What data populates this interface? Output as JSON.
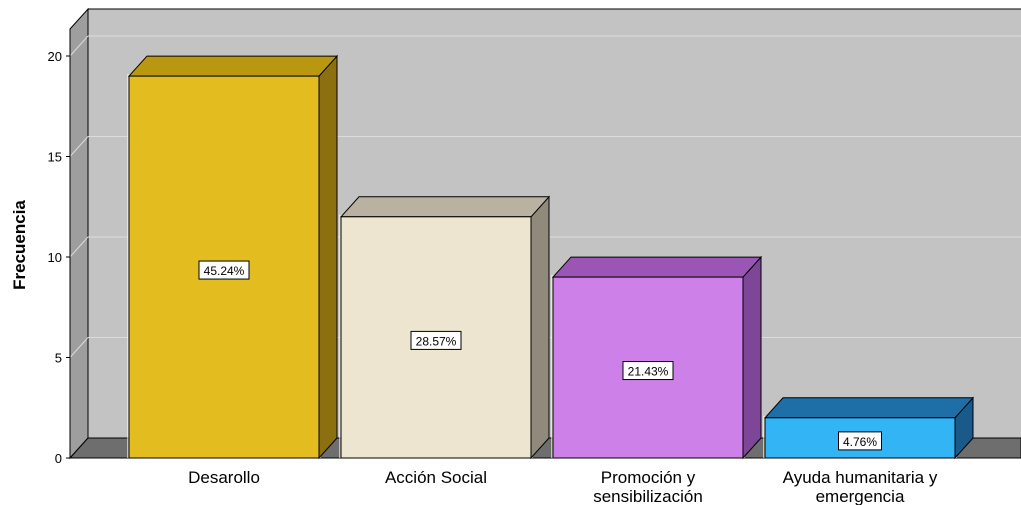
{
  "chart_data": {
    "type": "bar",
    "ylabel": "Frecuencia",
    "ylim": [
      0,
      20
    ],
    "yticks": [
      "0",
      "5",
      "10",
      "15",
      "20"
    ],
    "grid": true,
    "style": "3d",
    "categories": [
      [
        "Desarollo"
      ],
      [
        "Acción Social"
      ],
      [
        "Promoción y",
        "sensibilización"
      ],
      [
        "Ayuda humanitaria y",
        "emergencia"
      ]
    ],
    "values": [
      19,
      12,
      9,
      2
    ],
    "percent_labels": [
      "45.24%",
      "28.57%",
      "21.43%",
      "4.76%"
    ],
    "colors": {
      "front": [
        "#e3bd20",
        "#ede5cf",
        "#cc80e8",
        "#33b5f5"
      ],
      "top": [
        "#b99710",
        "#b9b2a0",
        "#9b55b5",
        "#1e6ea8"
      ],
      "side": [
        "#8c7010",
        "#8f8a7c",
        "#7d4696",
        "#195a8a"
      ],
      "wall": "#c3c3c3",
      "floor": "#6e6e6e",
      "gridline": "#dcdcdc"
    }
  }
}
